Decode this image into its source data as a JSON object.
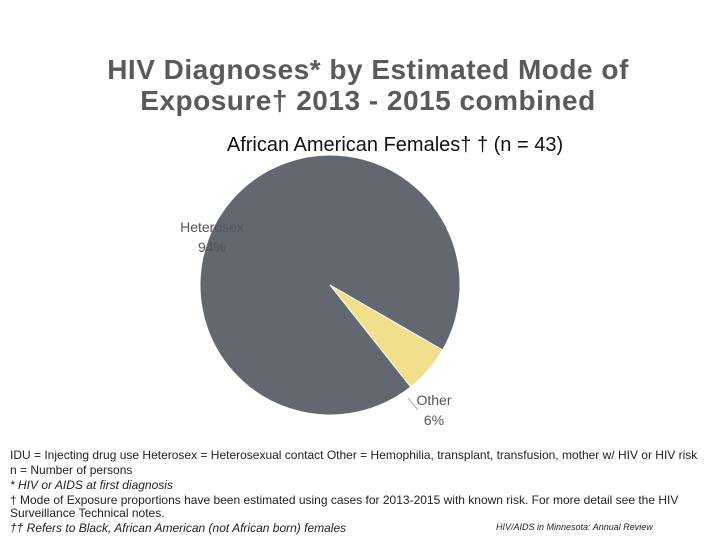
{
  "chart_data": {
    "type": "pie",
    "title": "HIV Diagnoses* by Estimated Mode of Exposure† 2013 - 2015 combined",
    "subtitle": "African American Females† † (n = 43)",
    "categories": [
      "Heterosex",
      "Other"
    ],
    "values": [
      94,
      6
    ],
    "value_labels": [
      "94%",
      "6%"
    ],
    "colors": [
      "#636870",
      "#f2df8c"
    ],
    "notes": [
      "IDU = Injecting drug use    Heterosex = Heterosexual contact   Other = Hemophilia, transplant, transfusion, mother w/ HIV or HIV risk",
      "n = Number of persons",
      "* HIV or AIDS at first diagnosis",
      "† Mode of Exposure proportions have been estimated using cases for 2013-2015 with known risk. For more detail see the HIV Surveillance Technical notes.",
      "†† Refers to Black, African American (not African born) females"
    ],
    "source": "HIV/AIDS in Minnesota: Annual Review"
  }
}
